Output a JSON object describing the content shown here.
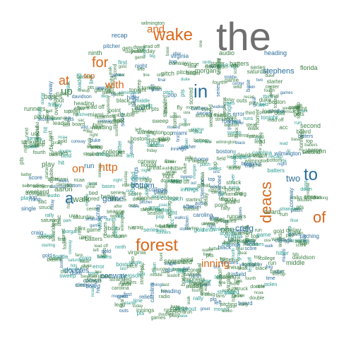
{
  "colors": {
    "background": "#ffffff",
    "gray": "#6f6f6f",
    "orange": "#d9681b",
    "teal": "#2b9a8e",
    "green": "#3c7f45"
  },
  "words": {
    "the": "the",
    "and": "and",
    "wake": "wake",
    "for": "for",
    "at": "at",
    "with": "with",
    "in": "in",
    "up": "up",
    "http": "http",
    "on": "on",
    "a": "a",
    "forest": "forest",
    "deacs": "deacs",
    "to": "to",
    "of": "of",
    "inning": "inning",
    "lead": "lead",
    "stephens": "stephens",
    "two": "two",
    "game": "game",
    "walk": "walk",
    "craig": "craig",
    "conway": "conway",
    "one": "one",
    "top": "top",
    "bottom": "bottom",
    "aaron": "aaron",
    "run": "run",
    "doubles": "doubles",
    "down": "down",
    "scores": "scores",
    "play": "play",
    "bases": "bases",
    "runners": "runners",
    "strikeout": "strikeout",
    "recap": "recap",
    "pitcher": "pitcher",
    "wilmington": "wilmington",
    "heading": "heading",
    "audio": "audio",
    "florida": "florida",
    "batters": "batters",
    "home": "home",
    "hits": "hits",
    "first": "first",
    "second": "second",
    "third": "third",
    "clemson": "clemson",
    "point": "point",
    "board": "board",
    "left": "left",
    "right": "right",
    "pitch": "pitch",
    "batter": "batter",
    "night": "night",
    "tonight": "tonight",
    "baseball": "baseball",
    "homer": "homer",
    "error": "error",
    "fourth": "fourth",
    "score": "score",
    "middle": "middle",
    "delay": "delay",
    "ninth": "ninth",
    "single": "single",
    "double": "double",
    "rbi": "rbi",
    "win": "win",
    "out": "out",
    "outs": "outs",
    "fly": "fly",
    "grounded": "grounded",
    "steal": "steal",
    "starting": "starting",
    "starter": "starter",
    "weekend": "weekend",
    "friday": "friday",
    "saturday": "saturday",
    "stranded": "stranded",
    "leadoff": "leadoff",
    "games": "games",
    "college": "college",
    "great": "great",
    "boston": "boston",
    "miami": "miami",
    "duke": "duke",
    "virginia": "virginia",
    "carolina": "carolina",
    "morgan": "morgan",
    "davidson": "davidson",
    "pitching": "pitching",
    "struck": "struck",
    "walks": "walks",
    "scored": "scored",
    "today": "today",
    "series": "series",
    "final": "final",
    "sweep": "sweep",
    "team": "team",
    "fans": "fans",
    "live": "live",
    "radio": "radio",
    "field": "field",
    "coach": "coach",
    "season": "season",
    "runs": "runs",
    "innings": "innings",
    "hit": "hit",
    "base": "base",
    "ball": "ball",
    "line": "line",
    "park": "park",
    "tied": "tied",
    "lineup": "lineup",
    "mound": "mound",
    "pop": "pop",
    "center": "center",
    "wild": "wild",
    "infield": "infield",
    "gets": "gets",
    "time": "time",
    "pts": "pts",
    "next": "next",
    "lead_off": "lead off",
    "loaded": "loaded",
    "relief": "relief",
    "hitter": "hitter",
    "sac": "sac",
    "bunt": "bunt",
    "stolen": "stolen",
    "over": "over",
    "after": "after",
    "more": "more",
    "last": "last",
    "big": "big",
    "rally": "rally",
    "walkoff": "walkoff",
    "yesterday": "yesterday",
    "gold": "gold",
    "black": "black",
    "uva": "uva",
    "unc": "unc",
    "acc": "acc",
    "ncaa": "ncaa"
  }
}
